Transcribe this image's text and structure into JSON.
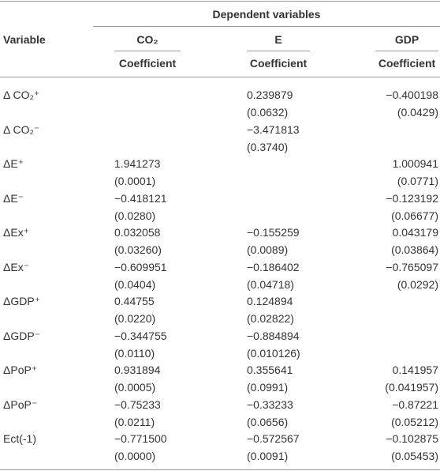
{
  "header": {
    "group": "Dependent variables",
    "variable": "Variable",
    "columns": [
      "CO₂",
      "E",
      "GDP"
    ],
    "subheader": [
      "Coefficient",
      "Coefficient",
      "Coefficient"
    ]
  },
  "rows": [
    {
      "variable": "Δ CO₂⁺",
      "cells": [
        null,
        [
          "0.239879",
          "(0.0632)"
        ],
        [
          "−0.400198",
          "(0.0429)"
        ]
      ]
    },
    {
      "variable": "Δ CO₂⁻",
      "cells": [
        null,
        [
          "−3.471813",
          "(0.3740)"
        ],
        null
      ]
    },
    {
      "variable": "ΔE⁺",
      "cells": [
        [
          "1.941273",
          "(0.0001)"
        ],
        null,
        [
          "1.000941",
          "(0.0771)"
        ]
      ]
    },
    {
      "variable": "ΔE⁻",
      "cells": [
        [
          "−0.418121",
          "(0.0280)"
        ],
        null,
        [
          "−0.123192",
          "(0.06677)"
        ]
      ]
    },
    {
      "variable": "ΔEx⁺",
      "cells": [
        [
          "0.032058",
          "(0.03260)"
        ],
        [
          "−0.155259",
          "(0.0089)"
        ],
        [
          "0.043179",
          "(0.03864)"
        ]
      ]
    },
    {
      "variable": "ΔEx⁻",
      "cells": [
        [
          "−0.609951",
          "(0.0404)"
        ],
        [
          "−0.186402",
          "(0.04718)"
        ],
        [
          "−0.765097",
          "(0.0292)"
        ]
      ]
    },
    {
      "variable": "ΔGDP⁺",
      "cells": [
        [
          "0.44755",
          "(0.0220)"
        ],
        [
          "0.124894",
          "(0.02822)"
        ],
        null
      ]
    },
    {
      "variable": "ΔGDP⁻",
      "cells": [
        [
          "−0.344755",
          "(0.0110)"
        ],
        [
          "−0.884894",
          "(0.010126)"
        ],
        null
      ]
    },
    {
      "variable": "ΔPoP⁺",
      "cells": [
        [
          "0.931894",
          "(0.0005)"
        ],
        [
          "0.355641",
          "(0.0991)"
        ],
        [
          "0.141957",
          "(0.041957)"
        ]
      ]
    },
    {
      "variable": "ΔPoP⁻",
      "cells": [
        [
          "−0.75233",
          "(0.0211)"
        ],
        [
          "−0.33233",
          "(0.0656)"
        ],
        [
          "−0.87221",
          "(0.05212)"
        ]
      ]
    },
    {
      "variable": "Ect(-1)",
      "cells": [
        [
          "−0.771500",
          "(0.0000)"
        ],
        [
          "−0.572567",
          "(0.0091)"
        ],
        [
          "−0.102875",
          "(0.05453)"
        ]
      ]
    }
  ]
}
